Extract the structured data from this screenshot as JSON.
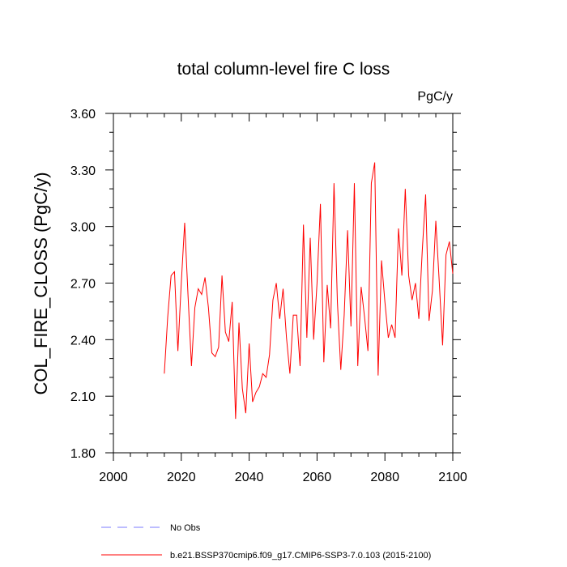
{
  "chart_data": {
    "type": "line",
    "title": "total column-level fire C loss",
    "units": "PgC/y",
    "xlabel": "",
    "ylabel": "COL_FIRE_CLOSS  (PgC/y)",
    "xlim": [
      2000,
      2100
    ],
    "ylim": [
      1.8,
      3.6
    ],
    "x_ticks": [
      2000,
      2020,
      2040,
      2060,
      2080,
      2100
    ],
    "y_ticks": [
      1.8,
      2.1,
      2.4,
      2.7,
      3.0,
      3.3,
      3.6
    ],
    "x_tick_labels": [
      "2000",
      "2020",
      "2040",
      "2060",
      "2080",
      "2100"
    ],
    "y_tick_labels": [
      "1.80",
      "2.10",
      "2.40",
      "2.70",
      "3.00",
      "3.30",
      "3.60"
    ],
    "grid": false,
    "legend_position": "bottom",
    "series": [
      {
        "name": "b.e21.BSSP370cmip6.f09_g17.CMIP6-SSP3-7.0.103 (2015-2100)",
        "color": "#ff0000",
        "style": "solid",
        "x": [
          2015,
          2016,
          2017,
          2018,
          2019,
          2020,
          2021,
          2022,
          2023,
          2024,
          2025,
          2026,
          2027,
          2028,
          2029,
          2030,
          2031,
          2032,
          2033,
          2034,
          2035,
          2036,
          2037,
          2038,
          2039,
          2040,
          2041,
          2042,
          2043,
          2044,
          2045,
          2046,
          2047,
          2048,
          2049,
          2050,
          2051,
          2052,
          2053,
          2054,
          2055,
          2056,
          2057,
          2058,
          2059,
          2060,
          2061,
          2062,
          2063,
          2064,
          2065,
          2066,
          2067,
          2068,
          2069,
          2070,
          2071,
          2072,
          2073,
          2074,
          2075,
          2076,
          2077,
          2078,
          2079,
          2080,
          2081,
          2082,
          2083,
          2084,
          2085,
          2086,
          2087,
          2088,
          2089,
          2090,
          2091,
          2092,
          2093,
          2094,
          2095,
          2096,
          2097,
          2098,
          2099,
          2100
        ],
        "values": [
          2.22,
          2.52,
          2.74,
          2.76,
          2.34,
          2.7,
          3.02,
          2.63,
          2.26,
          2.57,
          2.67,
          2.64,
          2.73,
          2.57,
          2.33,
          2.31,
          2.36,
          2.74,
          2.44,
          2.39,
          2.6,
          1.98,
          2.49,
          2.14,
          2.01,
          2.38,
          2.07,
          2.12,
          2.15,
          2.22,
          2.2,
          2.32,
          2.61,
          2.7,
          2.51,
          2.67,
          2.41,
          2.22,
          2.53,
          2.53,
          2.26,
          3.01,
          2.41,
          2.94,
          2.4,
          2.7,
          3.12,
          2.28,
          2.69,
          2.46,
          3.23,
          2.6,
          2.24,
          2.53,
          2.98,
          2.47,
          3.23,
          2.26,
          2.68,
          2.52,
          2.34,
          3.23,
          3.34,
          2.21,
          2.82,
          2.6,
          2.41,
          2.48,
          2.41,
          2.99,
          2.74,
          3.2,
          2.74,
          2.61,
          2.7,
          2.51,
          2.87,
          3.17,
          2.5,
          2.66,
          3.03,
          2.71,
          2.37,
          2.85,
          2.92,
          2.75
        ]
      },
      {
        "name": "No Obs",
        "color": "#7b7bff",
        "style": "dashed",
        "x": [],
        "values": []
      }
    ]
  }
}
